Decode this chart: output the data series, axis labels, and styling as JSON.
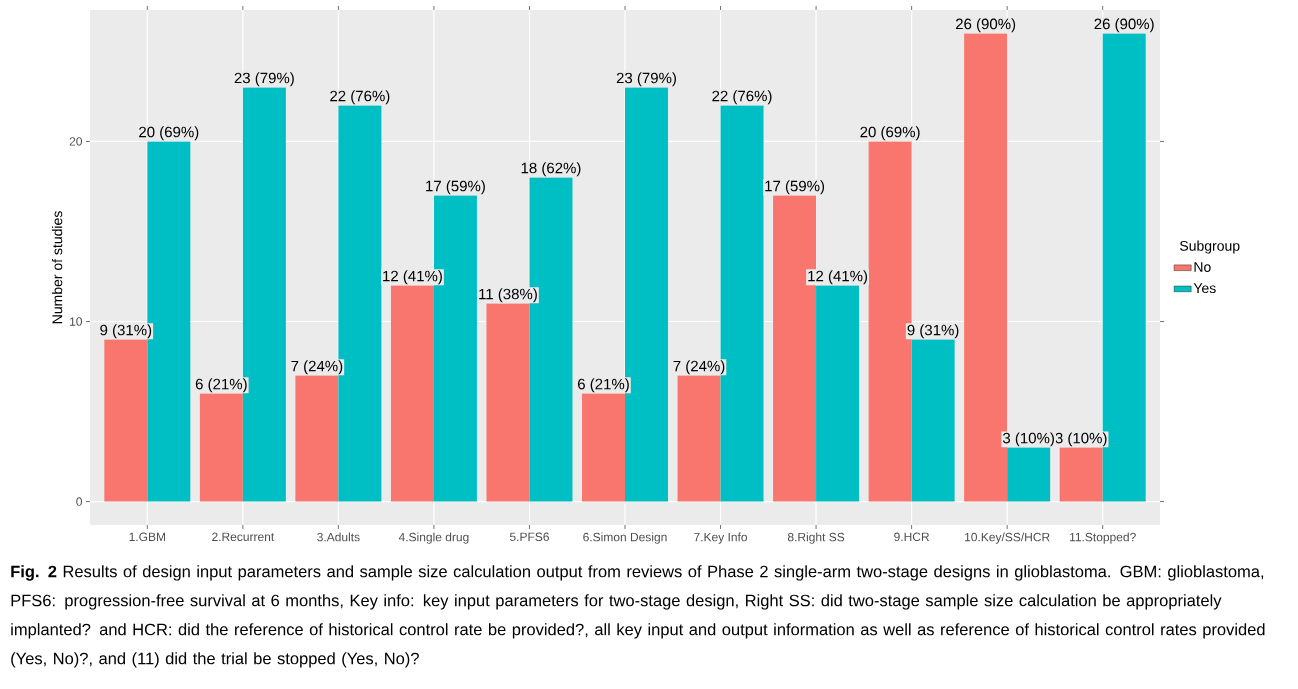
{
  "chart_data": {
    "type": "bar",
    "categories": [
      "1.GBM",
      "2.Recurrent",
      "3.Adults",
      "4.Single drug",
      "5.PFS6",
      "6.Simon Design",
      "7.Key Info",
      "8.Right SS",
      "9.HCR",
      "10.Key/SS/HCR",
      "11.Stopped?"
    ],
    "series": [
      {
        "name": "No",
        "color": "#f8766d",
        "values": [
          9,
          6,
          7,
          12,
          11,
          6,
          7,
          17,
          20,
          26,
          3
        ],
        "value_labels": [
          "9 (31%)",
          "6 (21%)",
          "7 (24%)",
          "12 (41%)",
          "11 (38%)",
          "6 (21%)",
          "7 (24%)",
          "17 (59%)",
          "20 (69%)",
          "26 (90%)",
          "3 (10%)"
        ]
      },
      {
        "name": "Yes",
        "color": "#00bfc4",
        "values": [
          20,
          23,
          22,
          17,
          18,
          23,
          22,
          12,
          9,
          3,
          26
        ],
        "value_labels": [
          "20 (69%)",
          "23 (79%)",
          "22 (76%)",
          "17 (59%)",
          "18 (62%)",
          "23 (79%)",
          "22 (76%)",
          "12 (41%)",
          "9 (31%)",
          "3 (10%)",
          "26 (90%)"
        ]
      }
    ],
    "ylabel": "Number of studies",
    "legend_title": "Subgroup",
    "legend": "right",
    "grid": true,
    "ylim": [
      -1.3,
      27.3
    ],
    "yticks": [
      0,
      10,
      20
    ],
    "annotations": [
      "**Fig. 2** Results of design input parameters and sample size calculation output from reviews of Phase 2 single-arm two-stage designs in glioblastoma. GBM: glioblastoma, PFS6: progression-free survival at 6 months, Key info: key input parameters for two-stage design, Right SS: did two-stage sample size calculation be appropriately implanted? and HCR: did the reference of historical control rate be provided?, all key input and output information as well as reference of historical control rates provided (Yes, No)?, and (11) did the trial be stopped (Yes, No)?"
    ]
  }
}
